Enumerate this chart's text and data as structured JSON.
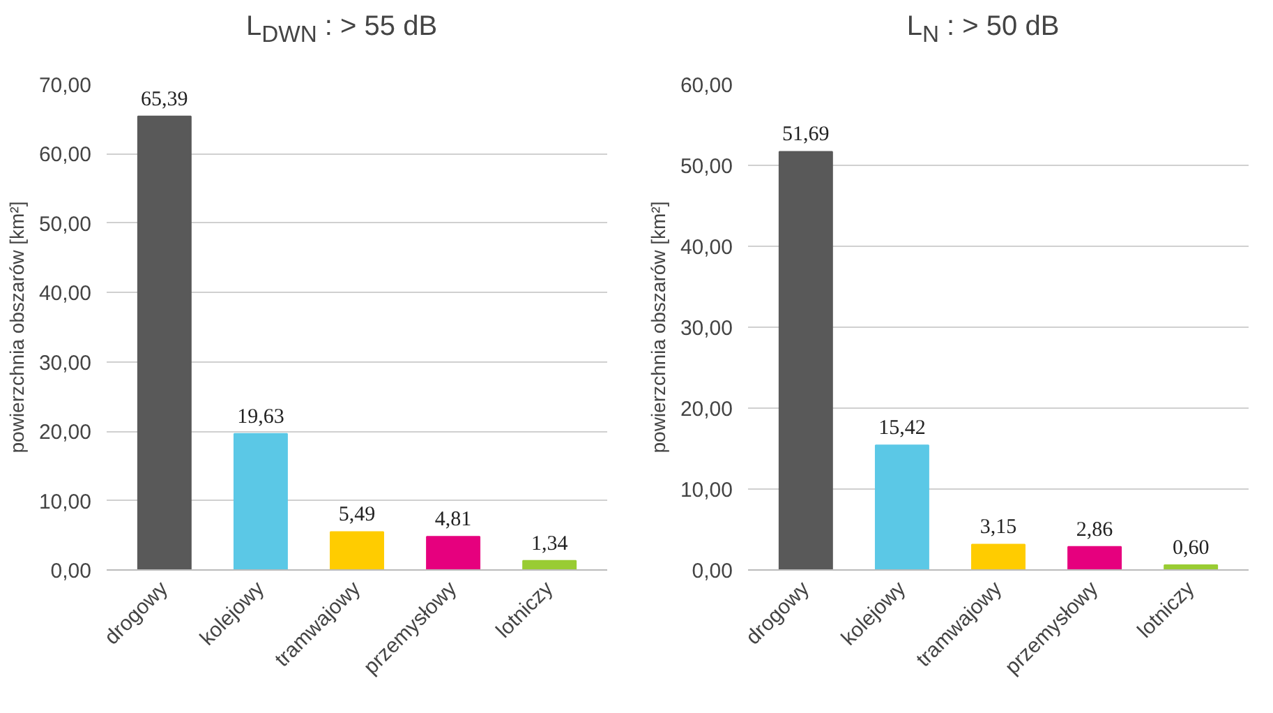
{
  "chart_data": [
    {
      "type": "bar",
      "title": "L$_{DWN}$ : > 55 dB",
      "ylabel": "powierzchnia obszarów [km²]",
      "categories": [
        "drogowy",
        "kolejowy",
        "tramwajowy",
        "przemysłowy",
        "lotniczy"
      ],
      "values": [
        65.39,
        19.63,
        5.49,
        4.81,
        1.34
      ],
      "value_labels": [
        "65,39",
        "19,63",
        "5,49",
        "4,81",
        "1,34"
      ],
      "colors": [
        "#595959",
        "#5bc8e6",
        "#ffcc00",
        "#e6007e",
        "#99cc33"
      ],
      "ylim": [
        0,
        70
      ],
      "yticks": [
        {
          "value": 0,
          "label": "0,00"
        },
        {
          "value": 10,
          "label": "10,00"
        },
        {
          "value": 20,
          "label": "20,00"
        },
        {
          "value": 30,
          "label": "30,00"
        },
        {
          "value": 40,
          "label": "40,00"
        },
        {
          "value": 50,
          "label": "50,00"
        },
        {
          "value": 60,
          "label": "60,00"
        },
        {
          "value": 70,
          "label": "70,00"
        }
      ],
      "grid": "y"
    },
    {
      "type": "bar",
      "title": "L$_{N}$ : > 50 dB",
      "ylabel": "powierzchnia obszarów [km²]",
      "categories": [
        "drogowy",
        "kolejowy",
        "tramwajowy",
        "przemysłowy",
        "lotniczy"
      ],
      "values": [
        51.69,
        15.42,
        3.15,
        2.86,
        0.6
      ],
      "value_labels": [
        "51,69",
        "15,42",
        "3,15",
        "2,86",
        "0,60"
      ],
      "colors": [
        "#595959",
        "#5bc8e6",
        "#ffcc00",
        "#e6007e",
        "#99cc33"
      ],
      "ylim": [
        0,
        60
      ],
      "yticks": [
        {
          "value": 0,
          "label": "0,00"
        },
        {
          "value": 10,
          "label": "10,00"
        },
        {
          "value": 20,
          "label": "20,00"
        },
        {
          "value": 30,
          "label": "30,00"
        },
        {
          "value": 40,
          "label": "40,00"
        },
        {
          "value": 50,
          "label": "50,00"
        },
        {
          "value": 60,
          "label": "60,00"
        }
      ],
      "grid": "y"
    }
  ]
}
